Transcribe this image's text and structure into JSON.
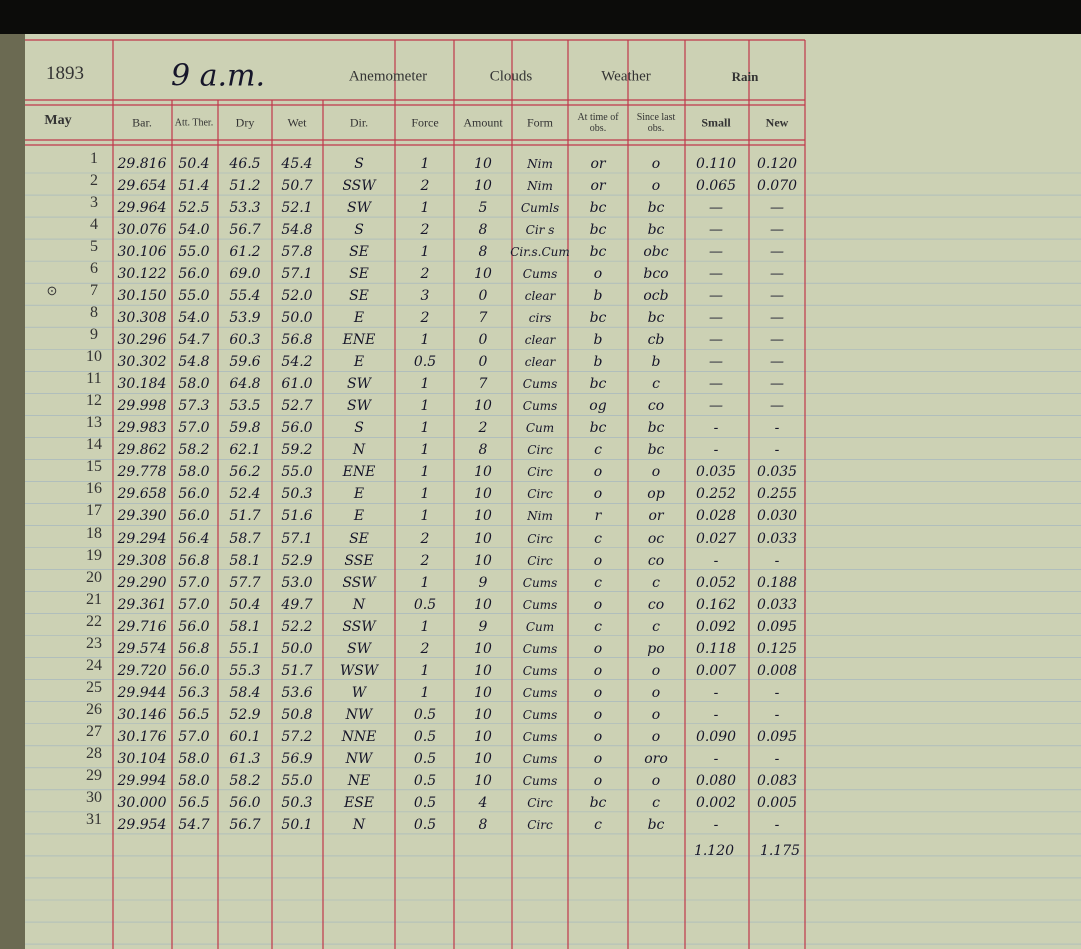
{
  "header": {
    "year": "1893",
    "time": "9 a.m.",
    "groups": [
      "Anemometer",
      "Clouds",
      "Weather",
      "Rain"
    ],
    "month": "May",
    "columns": [
      "Bar.",
      "Att. Ther.",
      "Dry",
      "Wet",
      "Dir.",
      "Force",
      "Amount",
      "Form",
      "At time of obs.",
      "Since last obs.",
      "Small",
      "New"
    ]
  },
  "marker": "⊙",
  "rows": [
    [
      "1",
      "29.816",
      "50.4",
      "46.5",
      "45.4",
      "S",
      "1",
      "10",
      "Nim",
      "or",
      "o",
      "0.110",
      "0.120"
    ],
    [
      "2",
      "29.654",
      "51.4",
      "51.2",
      "50.7",
      "SSW",
      "2",
      "10",
      "Nim",
      "or",
      "o",
      "0.065",
      "0.070"
    ],
    [
      "3",
      "29.964",
      "52.5",
      "53.3",
      "52.1",
      "SW",
      "1",
      "5",
      "Cumls",
      "bc",
      "bc",
      "—",
      "—"
    ],
    [
      "4",
      "30.076",
      "54.0",
      "56.7",
      "54.8",
      "S",
      "2",
      "8",
      "Cir s",
      "bc",
      "bc",
      "—",
      "—"
    ],
    [
      "5",
      "30.106",
      "55.0",
      "61.2",
      "57.8",
      "SE",
      "1",
      "8",
      "Cir.s.Cum",
      "bc",
      "obc",
      "—",
      "—"
    ],
    [
      "6",
      "30.122",
      "56.0",
      "69.0",
      "57.1",
      "SE",
      "2",
      "10",
      "Cums",
      "o",
      "bco",
      "—",
      "—"
    ],
    [
      "7",
      "30.150",
      "55.0",
      "55.4",
      "52.0",
      "SE",
      "3",
      "0",
      "clear",
      "b",
      "ocb",
      "—",
      "—"
    ],
    [
      "8",
      "30.308",
      "54.0",
      "53.9",
      "50.0",
      "E",
      "2",
      "7",
      "cirs",
      "bc",
      "bc",
      "—",
      "—"
    ],
    [
      "9",
      "30.296",
      "54.7",
      "60.3",
      "56.8",
      "ENE",
      "1",
      "0",
      "clear",
      "b",
      "cb",
      "—",
      "—"
    ],
    [
      "10",
      "30.302",
      "54.8",
      "59.6",
      "54.2",
      "E",
      "0.5",
      "0",
      "clear",
      "b",
      "b",
      "—",
      "—"
    ],
    [
      "11",
      "30.184",
      "58.0",
      "64.8",
      "61.0",
      "SW",
      "1",
      "7",
      "Cums",
      "bc",
      "c",
      "—",
      "—"
    ],
    [
      "12",
      "29.998",
      "57.3",
      "53.5",
      "52.7",
      "SW",
      "1",
      "10",
      "Cums",
      "og",
      "co",
      "—",
      "—"
    ],
    [
      "13",
      "29.983",
      "57.0",
      "59.8",
      "56.0",
      "S",
      "1",
      "2",
      "Cum",
      "bc",
      "bc",
      "-",
      "-"
    ],
    [
      "14",
      "29.862",
      "58.2",
      "62.1",
      "59.2",
      "N",
      "1",
      "8",
      "Circ",
      "c",
      "bc",
      "-",
      "-"
    ],
    [
      "15",
      "29.778",
      "58.0",
      "56.2",
      "55.0",
      "ENE",
      "1",
      "10",
      "Circ",
      "o",
      "o",
      "0.035",
      "0.035"
    ],
    [
      "16",
      "29.658",
      "56.0",
      "52.4",
      "50.3",
      "E",
      "1",
      "10",
      "Circ",
      "o",
      "op",
      "0.252",
      "0.255"
    ],
    [
      "17",
      "29.390",
      "56.0",
      "51.7",
      "51.6",
      "E",
      "1",
      "10",
      "Nim",
      "r",
      "or",
      "0.028",
      "0.030"
    ],
    [
      "18",
      "29.294",
      "56.4",
      "58.7",
      "57.1",
      "SE",
      "2",
      "10",
      "Circ",
      "c",
      "oc",
      "0.027",
      "0.033"
    ],
    [
      "19",
      "29.308",
      "56.8",
      "58.1",
      "52.9",
      "SSE",
      "2",
      "10",
      "Circ",
      "o",
      "co",
      "-",
      "-"
    ],
    [
      "20",
      "29.290",
      "57.0",
      "57.7",
      "53.0",
      "SSW",
      "1",
      "9",
      "Cums",
      "c",
      "c",
      "0.052",
      "0.188"
    ],
    [
      "21",
      "29.361",
      "57.0",
      "50.4",
      "49.7",
      "N",
      "0.5",
      "10",
      "Cums",
      "o",
      "co",
      "0.162",
      "0.033"
    ],
    [
      "22",
      "29.716",
      "56.0",
      "58.1",
      "52.2",
      "SSW",
      "1",
      "9",
      "Cum",
      "c",
      "c",
      "0.092",
      "0.095"
    ],
    [
      "23",
      "29.574",
      "56.8",
      "55.1",
      "50.0",
      "SW",
      "2",
      "10",
      "Cums",
      "o",
      "po",
      "0.118",
      "0.125"
    ],
    [
      "24",
      "29.720",
      "56.0",
      "55.3",
      "51.7",
      "WSW",
      "1",
      "10",
      "Cums",
      "o",
      "o",
      "0.007",
      "0.008"
    ],
    [
      "25",
      "29.944",
      "56.3",
      "58.4",
      "53.6",
      "W",
      "1",
      "10",
      "Cums",
      "o",
      "o",
      "-",
      "-"
    ],
    [
      "26",
      "30.146",
      "56.5",
      "52.9",
      "50.8",
      "NW",
      "0.5",
      "10",
      "Cums",
      "o",
      "o",
      "-",
      "-"
    ],
    [
      "27",
      "30.176",
      "57.0",
      "60.1",
      "57.2",
      "NNE",
      "0.5",
      "10",
      "Cums",
      "o",
      "o",
      "0.090",
      "0.095"
    ],
    [
      "28",
      "30.104",
      "58.0",
      "61.3",
      "56.9",
      "NW",
      "0.5",
      "10",
      "Cums",
      "o",
      "oro",
      "-",
      "-"
    ],
    [
      "29",
      "29.994",
      "58.0",
      "58.2",
      "55.0",
      "NE",
      "0.5",
      "10",
      "Cums",
      "o",
      "o",
      "0.080",
      "0.083"
    ],
    [
      "30",
      "30.000",
      "56.5",
      "56.0",
      "50.3",
      "ESE",
      "0.5",
      "4",
      "Circ",
      "bc",
      "c",
      "0.002",
      "0.005"
    ],
    [
      "31",
      "29.954",
      "54.7",
      "56.7",
      "50.1",
      "N",
      "0.5",
      "8",
      "Circ",
      "c",
      "bc",
      "-",
      "-"
    ]
  ],
  "totals": [
    "1.120",
    "1.175"
  ]
}
